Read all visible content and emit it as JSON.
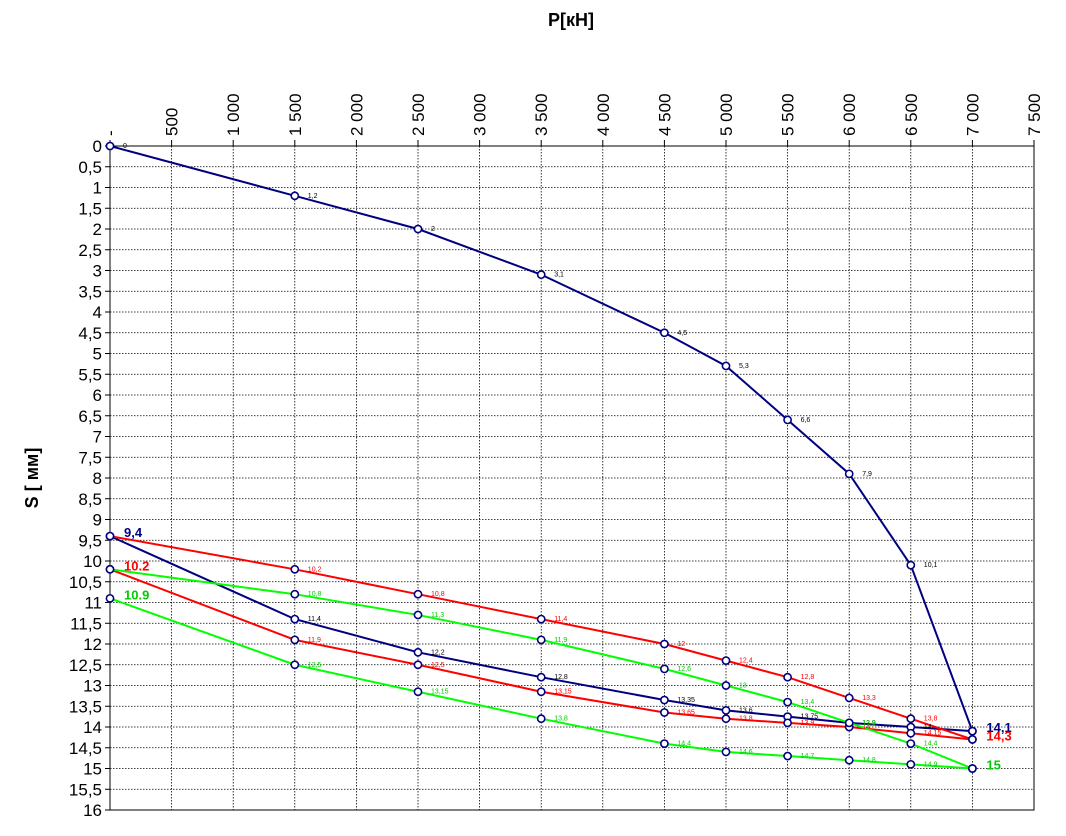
{
  "chart_data": {
    "type": "line",
    "xlabel": "P[кН]",
    "ylabel": "S [ мм]",
    "xlim": [
      0,
      7500
    ],
    "ylim": [
      0,
      16
    ],
    "y_inverted": true,
    "x_axis_position": "top",
    "grid": true,
    "x_ticks": [
      0,
      500,
      1000,
      1500,
      2000,
      2500,
      3000,
      3500,
      4000,
      4500,
      5000,
      5500,
      6000,
      6500,
      7000,
      7500
    ],
    "x_tick_labels": [
      "-",
      "500",
      "1 000",
      "1 500",
      "2 000",
      "2 500",
      "3 000",
      "3 500",
      "4 000",
      "4 500",
      "5 000",
      "5 500",
      "6 000",
      "6 500",
      "7 000",
      "7 500"
    ],
    "y_ticks": [
      0,
      0.5,
      1,
      1.5,
      2,
      2.5,
      3,
      3.5,
      4,
      4.5,
      5,
      5.5,
      6,
      6.5,
      7,
      7.5,
      8,
      8.5,
      9,
      9.5,
      10,
      10.5,
      11,
      11.5,
      12,
      12.5,
      13,
      13.5,
      14,
      14.5,
      15,
      15.5,
      16
    ],
    "y_tick_labels": [
      "0",
      "0,5",
      "1",
      "1,5",
      "2",
      "2,5",
      "3",
      "3,5",
      "4",
      "4,5",
      "5",
      "5,5",
      "6",
      "6,5",
      "7",
      "7,5",
      "8",
      "8,5",
      "9",
      "9,5",
      "10",
      "10,5",
      "11",
      "11,5",
      "12",
      "12,5",
      "13",
      "13,5",
      "14",
      "14,5",
      "15",
      "15,5",
      "16"
    ],
    "series": [
      {
        "color": "#000080",
        "label_color": "#000000",
        "points": [
          [
            0,
            0
          ],
          [
            1500,
            1.2
          ],
          [
            2500,
            2
          ],
          [
            3500,
            3.1
          ],
          [
            4500,
            4.5
          ],
          [
            5000,
            5.3
          ],
          [
            5500,
            6.6
          ],
          [
            6000,
            7.9
          ],
          [
            6500,
            10.1
          ],
          [
            7000,
            14.1
          ]
        ],
        "labels": [
          "0",
          "1,2",
          "2",
          "3,1",
          "4,5",
          "5,3",
          "6,6",
          "7,9",
          "10,1",
          ""
        ]
      },
      {
        "color": "#000080",
        "label_color": "#000000",
        "points": [
          [
            0,
            9.4
          ],
          [
            1500,
            11.4
          ],
          [
            2500,
            12.2
          ],
          [
            3500,
            12.8
          ],
          [
            4500,
            13.35
          ],
          [
            5000,
            13.6
          ],
          [
            5500,
            13.75
          ],
          [
            6000,
            13.9
          ],
          [
            6500,
            14
          ],
          [
            7000,
            14.1
          ]
        ],
        "labels": [
          "",
          "11,4",
          "12,2",
          "12,8",
          "13,35",
          "13,6",
          "13,75",
          "13,9",
          "14",
          ""
        ]
      },
      {
        "color": "#ff0000",
        "label_color": "#ff0000",
        "points": [
          [
            0,
            9.4
          ],
          [
            1500,
            10.2
          ],
          [
            2500,
            10.8
          ],
          [
            3500,
            11.4
          ],
          [
            4500,
            12
          ],
          [
            5000,
            12.4
          ],
          [
            5500,
            12.8
          ],
          [
            6000,
            13.3
          ],
          [
            6500,
            13.8
          ],
          [
            7000,
            14.3
          ]
        ],
        "labels": [
          "",
          "10,2",
          "10,8",
          "11,4",
          "12",
          "12,4",
          "12,8",
          "13,3",
          "13,8",
          ""
        ]
      },
      {
        "color": "#ff0000",
        "label_color": "#ff0000",
        "points": [
          [
            0,
            10.2
          ],
          [
            1500,
            11.9
          ],
          [
            2500,
            12.5
          ],
          [
            3500,
            13.15
          ],
          [
            4500,
            13.65
          ],
          [
            5000,
            13.8
          ],
          [
            5500,
            13.9
          ],
          [
            6000,
            14
          ],
          [
            6500,
            14.15
          ],
          [
            7000,
            14.3
          ]
        ],
        "labels": [
          "",
          "11,9",
          "12,5",
          "13,15",
          "13,65",
          "13,8",
          "13,9",
          "14",
          "14,15",
          ""
        ]
      },
      {
        "color": "#00ff00",
        "label_color": "#00cc00",
        "points": [
          [
            0,
            10.2
          ],
          [
            1500,
            10.8
          ],
          [
            2500,
            11.3
          ],
          [
            3500,
            11.9
          ],
          [
            4500,
            12.6
          ],
          [
            5000,
            13
          ],
          [
            5500,
            13.4
          ],
          [
            6000,
            13.9
          ],
          [
            6500,
            14.4
          ],
          [
            7000,
            15
          ]
        ],
        "labels": [
          "",
          "10,8",
          "11,3",
          "11,9",
          "12,6",
          "13",
          "13,4",
          "13,9",
          "14,4",
          ""
        ]
      },
      {
        "color": "#00ff00",
        "label_color": "#00cc00",
        "points": [
          [
            0,
            10.9
          ],
          [
            1500,
            12.5
          ],
          [
            2500,
            13.15
          ],
          [
            3500,
            13.8
          ],
          [
            4500,
            14.4
          ],
          [
            5000,
            14.6
          ],
          [
            5500,
            14.7
          ],
          [
            6000,
            14.8
          ],
          [
            6500,
            14.9
          ],
          [
            7000,
            15
          ]
        ],
        "labels": [
          "",
          "12,5",
          "13,15",
          "13,8",
          "14,4",
          "14,6",
          "14,7",
          "14,8",
          "14,9",
          ""
        ]
      }
    ],
    "annotations": [
      {
        "text": "9,4",
        "x": 0,
        "y": 9.4,
        "color": "#000080"
      },
      {
        "text": "10.2",
        "x": 0,
        "y": 10.2,
        "color": "#ff0000"
      },
      {
        "text": "10.9",
        "x": 0,
        "y": 10.9,
        "color": "#00cc00"
      },
      {
        "text": "14,1",
        "x": 7000,
        "y": 14.1,
        "color": "#000080"
      },
      {
        "text": "14,3",
        "x": 7000,
        "y": 14.3,
        "color": "#ff0000"
      },
      {
        "text": "15",
        "x": 7000,
        "y": 15,
        "color": "#00cc00"
      }
    ]
  }
}
